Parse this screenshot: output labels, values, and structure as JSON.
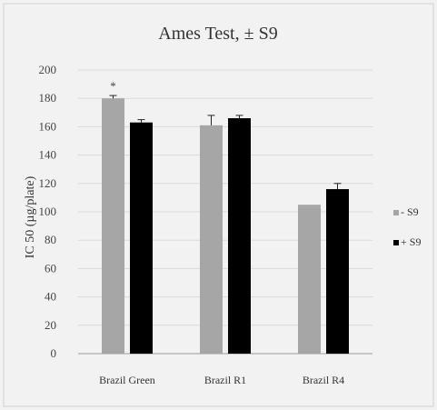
{
  "chart_data": {
    "type": "bar",
    "title": "Ames Test, ± S9",
    "xlabel": "",
    "ylabel": "IC 50 (µg/plate)",
    "ylim": [
      0,
      200
    ],
    "yticks": [
      0,
      20,
      40,
      60,
      80,
      100,
      120,
      140,
      160,
      180,
      200
    ],
    "categories": [
      "Brazil Green",
      "Brazil R1",
      "Brazil R4"
    ],
    "series": [
      {
        "name": "- S9",
        "color": "#a6a6a6",
        "values": [
          180,
          161,
          105
        ],
        "errors": [
          2,
          7,
          0
        ]
      },
      {
        "name": "+ S9",
        "color": "#000000",
        "values": [
          163,
          166,
          116
        ],
        "errors": [
          2,
          2,
          4
        ]
      }
    ],
    "annotations": [
      {
        "category": "Brazil Green",
        "series": "- S9",
        "text": "*"
      }
    ],
    "grid": true,
    "legend_position": "right"
  }
}
